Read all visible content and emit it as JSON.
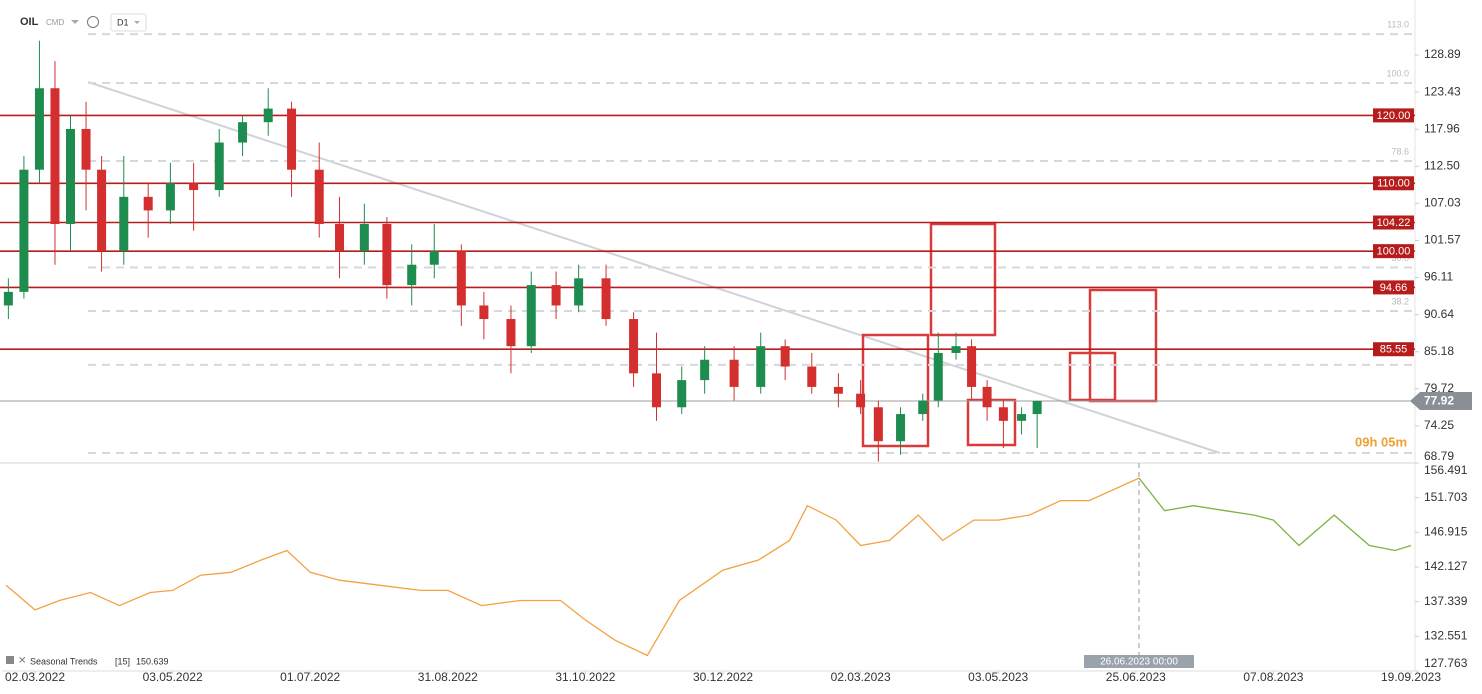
{
  "header": {
    "symbol": "OIL",
    "market": "CMD",
    "interval": "D1"
  },
  "chart_data": [
    {
      "type": "candlestick",
      "x": [
        "2022-02-18",
        "2022-02-25",
        "2022-03-04",
        "2022-03-11",
        "2022-03-18",
        "2022-03-25",
        "2022-04-01",
        "2022-04-11",
        "2022-04-22",
        "2022-05-02",
        "2022-05-12",
        "2022-05-23",
        "2022-06-02",
        "2022-06-13",
        "2022-06-23",
        "2022-07-05",
        "2022-07-14",
        "2022-07-25",
        "2022-08-04",
        "2022-08-15",
        "2022-08-25",
        "2022-09-06",
        "2022-09-16",
        "2022-09-28",
        "2022-10-07",
        "2022-10-18",
        "2022-10-28",
        "2022-11-09",
        "2022-11-21",
        "2022-12-01",
        "2022-12-12",
        "2022-12-22",
        "2023-01-04",
        "2023-01-16",
        "2023-01-27",
        "2023-02-08",
        "2023-02-20",
        "2023-03-02",
        "2023-03-10",
        "2023-03-20",
        "2023-03-30",
        "2023-04-06",
        "2023-04-14",
        "2023-04-21",
        "2023-04-28",
        "2023-05-05",
        "2023-05-12",
        "2023-05-18"
      ],
      "open": [
        92,
        94,
        112,
        124,
        104,
        118,
        112,
        100,
        108,
        106,
        110,
        109,
        116,
        119,
        121,
        112,
        104,
        100,
        104,
        95,
        98,
        100,
        92,
        90,
        86,
        95,
        92,
        96,
        90,
        82,
        77,
        81,
        84,
        80,
        86,
        83,
        80,
        79,
        77,
        72,
        76,
        78,
        85,
        86,
        80,
        77,
        75,
        76
      ],
      "high": [
        96,
        114,
        131,
        128,
        120,
        122,
        114,
        114,
        110,
        113,
        113,
        118,
        120,
        124,
        122,
        116,
        108,
        107,
        105,
        101,
        104,
        101,
        94,
        92,
        97,
        97,
        98,
        98,
        91,
        88,
        83,
        86,
        86,
        88,
        87,
        85,
        82,
        81,
        78,
        77,
        79,
        88,
        88,
        87,
        81,
        78,
        77,
        78
      ],
      "low": [
        90,
        93,
        110,
        98,
        100,
        106,
        97,
        98,
        102,
        104,
        103,
        108,
        114,
        117,
        108,
        102,
        96,
        98,
        93,
        92,
        96,
        89,
        87,
        82,
        85,
        90,
        91,
        89,
        80,
        75,
        76,
        79,
        78,
        79,
        81,
        79,
        77,
        76,
        69,
        70,
        75,
        77,
        84,
        78,
        75,
        71,
        73,
        71
      ],
      "close": [
        94,
        112,
        124,
        104,
        118,
        112,
        100,
        108,
        106,
        110,
        109,
        116,
        119,
        121,
        112,
        104,
        100,
        104,
        95,
        98,
        100,
        92,
        90,
        86,
        95,
        92,
        96,
        90,
        82,
        77,
        81,
        84,
        80,
        86,
        83,
        80,
        79,
        77,
        72,
        76,
        78,
        85,
        86,
        80,
        77,
        75,
        76,
        77.92
      ],
      "up_color": "#1e8c4e",
      "down_color": "#d32f2f",
      "ylim": [
        68.79,
        137.0
      ],
      "yticks": [
        68.79,
        74.25,
        79.72,
        85.18,
        90.64,
        96.11,
        101.57,
        107.03,
        {
          "value": 112.5,
          "label": "112.50"
        },
        117.96,
        123.43,
        128.89
      ],
      "levels": [
        {
          "value": 120,
          "label": "120.00"
        },
        {
          "value": 110,
          "label": "110.00"
        },
        {
          "value": 104.22,
          "label": "104.22"
        },
        {
          "value": 100,
          "label": "100.00"
        },
        {
          "value": 94.66,
          "label": "94.66"
        },
        {
          "value": 85.55,
          "label": "85.55"
        }
      ],
      "level_color": "#b71c1c",
      "fib_levels": [
        {
          "value": 131.98,
          "label": "113.0"
        },
        {
          "value": 124.77,
          "label": "100.0"
        },
        {
          "value": 113.28,
          "label": "78.6"
        },
        {
          "value": 97.6,
          "label": "50.0"
        },
        {
          "value": 91.19,
          "label": "38.2"
        },
        {
          "value": 83.24
        },
        {
          "value": 70.27
        }
      ],
      "last_price": 77.92,
      "countdown": "09h 05m"
    },
    {
      "type": "line",
      "x": [
        "2022-02-17",
        "2022-03-02",
        "2022-03-13",
        "2022-03-27",
        "2022-04-09",
        "2022-04-23",
        "2022-05-03",
        "2022-05-15",
        "2022-05-28",
        "2022-06-10",
        "2022-06-21",
        "2022-07-01",
        "2022-07-14",
        "2022-08-01",
        "2022-08-19",
        "2022-08-31",
        "2022-09-15",
        "2022-10-02",
        "2022-10-20",
        "2022-10-31",
        "2022-11-13",
        "2022-11-27",
        "2022-12-11",
        "2022-12-30",
        "2023-01-15",
        "2023-01-29",
        "2023-02-06",
        "2023-02-19",
        "2023-03-02",
        "2023-03-15",
        "2023-03-28",
        "2023-04-08",
        "2023-04-22",
        "2023-05-03",
        "2023-05-15",
        "2023-05-27",
        "2023-06-07",
        "2023-06-26",
        "2023-07-04",
        "2023-07-13",
        "2023-07-23",
        "2023-08-01",
        "2023-08-07",
        "2023-08-15",
        "2023-08-26",
        "2023-09-06",
        "2023-09-14",
        "2023-09-19"
      ],
      "series": [
        {
          "color": "#f5a142",
          "values": [
            139.6,
            136.2,
            137.5,
            138.6,
            136.8,
            138.6,
            138.9,
            141.0,
            141.4,
            143.1,
            144.4,
            141.4,
            140.3,
            139.6,
            138.9,
            138.9,
            136.8,
            137.5,
            137.5,
            134.8,
            132.0,
            129.9,
            137.5,
            141.7,
            143.1,
            145.8,
            150.6,
            148.6,
            145.1,
            145.8,
            149.3,
            145.8,
            148.6,
            148.6,
            149.3,
            151.3,
            151.3,
            154.4,
            null,
            null,
            null,
            null,
            null,
            null,
            null,
            null,
            null,
            null
          ]
        },
        {
          "color": "#7cb342",
          "values": [
            null,
            null,
            null,
            null,
            null,
            null,
            null,
            null,
            null,
            null,
            null,
            null,
            null,
            null,
            null,
            null,
            null,
            null,
            null,
            null,
            null,
            null,
            null,
            null,
            null,
            null,
            null,
            null,
            null,
            null,
            null,
            null,
            null,
            null,
            null,
            null,
            null,
            154.4,
            149.9,
            150.6,
            149.9,
            149.3,
            148.6,
            145.1,
            149.3,
            145.1,
            144.4,
            145.1
          ]
        }
      ],
      "ylim": [
        127.763,
        156.491
      ],
      "yticks": [
        127.763,
        132.551,
        137.339,
        142.127,
        146.915,
        151.703,
        156.491
      ],
      "xlim": [
        "2022-02-15",
        "2023-09-20"
      ],
      "xticks": [
        {
          "value": "2022-03-02",
          "label": "02.03.2022"
        },
        {
          "value": "2022-05-03",
          "label": "03.05.2022"
        },
        {
          "value": "2022-07-01",
          "label": "01.07.2022"
        },
        {
          "value": "2022-08-31",
          "label": "31.08.2022"
        },
        {
          "value": "2022-10-31",
          "label": "31.10.2022"
        },
        {
          "value": "2022-12-30",
          "label": "30.12.2022"
        },
        {
          "value": "2023-03-02",
          "label": "02.03.2023"
        },
        {
          "value": "2023-05-03",
          "label": "03.05.2023"
        },
        {
          "value": "2023-06-25",
          "label": "25.06.2023"
        },
        {
          "value": "2023-08-07",
          "label": "07.08.2023"
        },
        {
          "value": "2023-09-19",
          "label": "19.09.2023"
        }
      ],
      "legend": {
        "name": "Seasonal Trends",
        "period": "[15]",
        "value": 150.639
      },
      "crosshair": {
        "x": "2023-06-26",
        "label": "26.06.2023 00:00"
      }
    }
  ]
}
